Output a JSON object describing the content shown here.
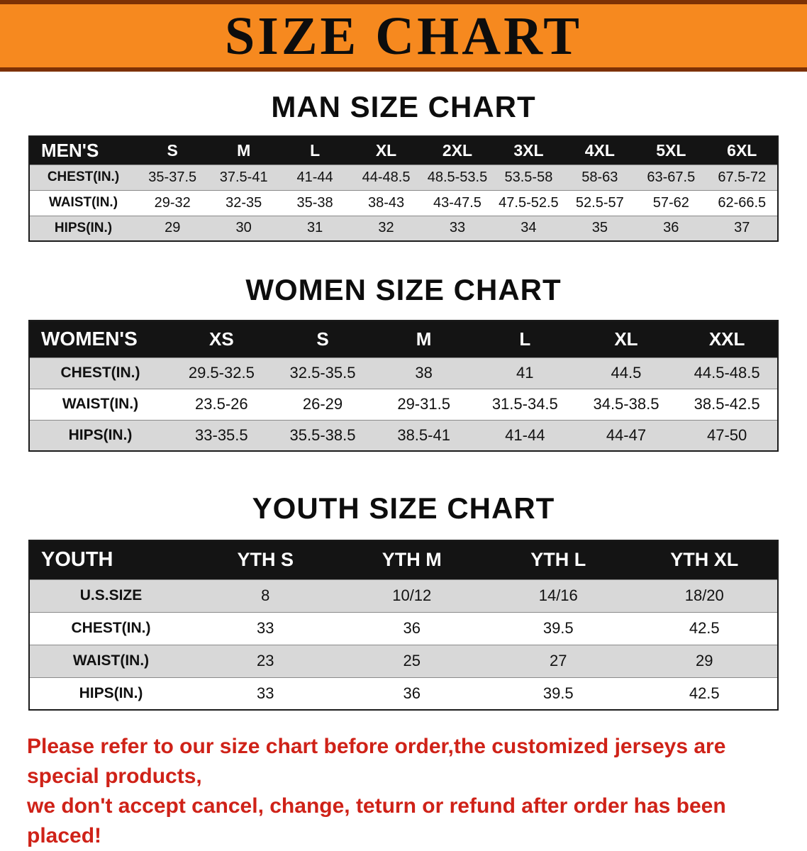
{
  "banner": {
    "title": "SIZE CHART"
  },
  "sections": [
    {
      "heading": "MAN SIZE CHART",
      "table": {
        "header": [
          "MEN'S",
          "S",
          "M",
          "L",
          "XL",
          "2XL",
          "3XL",
          "4XL",
          "5XL",
          "6XL"
        ],
        "rows": [
          [
            "CHEST(IN.)",
            "35-37.5",
            "37.5-41",
            "41-44",
            "44-48.5",
            "48.5-53.5",
            "53.5-58",
            "58-63",
            "63-67.5",
            "67.5-72"
          ],
          [
            "WAIST(IN.)",
            "29-32",
            "32-35",
            "35-38",
            "38-43",
            "43-47.5",
            "47.5-52.5",
            "52.5-57",
            "57-62",
            "62-66.5"
          ],
          [
            "HIPS(IN.)",
            "29",
            "30",
            "31",
            "32",
            "33",
            "34",
            "35",
            "36",
            "37"
          ]
        ]
      }
    },
    {
      "heading": "WOMEN SIZE CHART",
      "table": {
        "header": [
          "WOMEN'S",
          "XS",
          "S",
          "M",
          "L",
          "XL",
          "XXL"
        ],
        "rows": [
          [
            "CHEST(IN.)",
            "29.5-32.5",
            "32.5-35.5",
            "38",
            "41",
            "44.5",
            "44.5-48.5"
          ],
          [
            "WAIST(IN.)",
            "23.5-26",
            "26-29",
            "29-31.5",
            "31.5-34.5",
            "34.5-38.5",
            "38.5-42.5"
          ],
          [
            "HIPS(IN.)",
            "33-35.5",
            "35.5-38.5",
            "38.5-41",
            "41-44",
            "44-47",
            "47-50"
          ]
        ]
      }
    },
    {
      "heading": "YOUTH SIZE CHART",
      "table": {
        "header": [
          "YOUTH",
          "YTH S",
          "YTH M",
          "YTH L",
          "YTH XL"
        ],
        "rows": [
          [
            "U.S.SIZE",
            "8",
            "10/12",
            "14/16",
            "18/20"
          ],
          [
            "CHEST(IN.)",
            "33",
            "36",
            "39.5",
            "42.5"
          ],
          [
            "WAIST(IN.)",
            "23",
            "25",
            "27",
            "29"
          ],
          [
            "HIPS(IN.)",
            "33",
            "36",
            "39.5",
            "42.5"
          ]
        ]
      }
    }
  ],
  "footer": {
    "lines": [
      "Please refer to our size chart before order,the customized jerseys are special products,",
      "we don't accept cancel, change, teturn or refund after order has been placed!"
    ]
  },
  "colors": {
    "banner_bg": "#f6891f",
    "banner_edge": "#7d3104",
    "table_header_bg": "#141414",
    "row_alt_bg": "#d8d8d8",
    "footer_text": "#cf2218"
  }
}
